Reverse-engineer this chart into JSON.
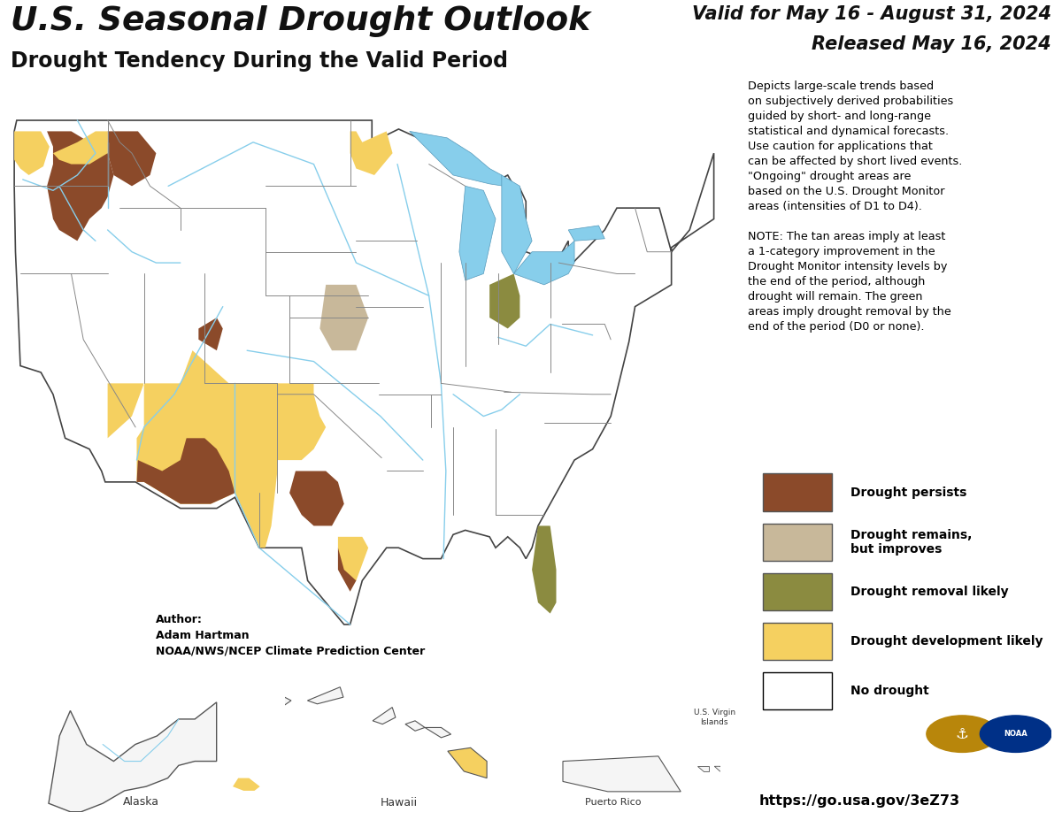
{
  "title_main": "U.S. Seasonal Drought Outlook",
  "title_sub": "Drought Tendency During the Valid Period",
  "valid_line1": "Valid for May 16 - August 31, 2024",
  "valid_line2": "Released May 16, 2024",
  "author_text": "Author:\nAdam Hartman\nNOAA/NWS/NCEP Climate Prediction Center",
  "url_text": "https://go.usa.gov/3eZ73",
  "description_text": "Depicts large-scale trends based\non subjectively derived probabilities\nguided by short- and long-range\nstatistical and dynamical forecasts.\nUse caution for applications that\ncan be affected by short lived events.\n\"Ongoing\" drought areas are\nbased on the U.S. Drought Monitor\nareas (intensities of D1 to D4).\n\nNOTE: The tan areas imply at least\na 1-category improvement in the\nDrought Monitor intensity levels by\nthe end of the period, although\ndrought will remain. The green\nareas imply drought removal by the\nend of the period (D0 or none).",
  "legend_items": [
    {
      "color": "#8B4A2A",
      "label": "Drought persists"
    },
    {
      "color": "#C8B89A",
      "label": "Drought remains,\nbut improves"
    },
    {
      "color": "#8B8B40",
      "label": "Drought removal likely"
    },
    {
      "color": "#F5D060",
      "label": "Drought development likely"
    },
    {
      "color": "#FFFFFF",
      "label": "No drought",
      "edgecolor": "#000000"
    }
  ],
  "background_color": "#FFFFFF",
  "lake_color": "#87CEEB",
  "state_line_color": "#888888",
  "border_color": "#333333",
  "river_color": "#87CEEB"
}
